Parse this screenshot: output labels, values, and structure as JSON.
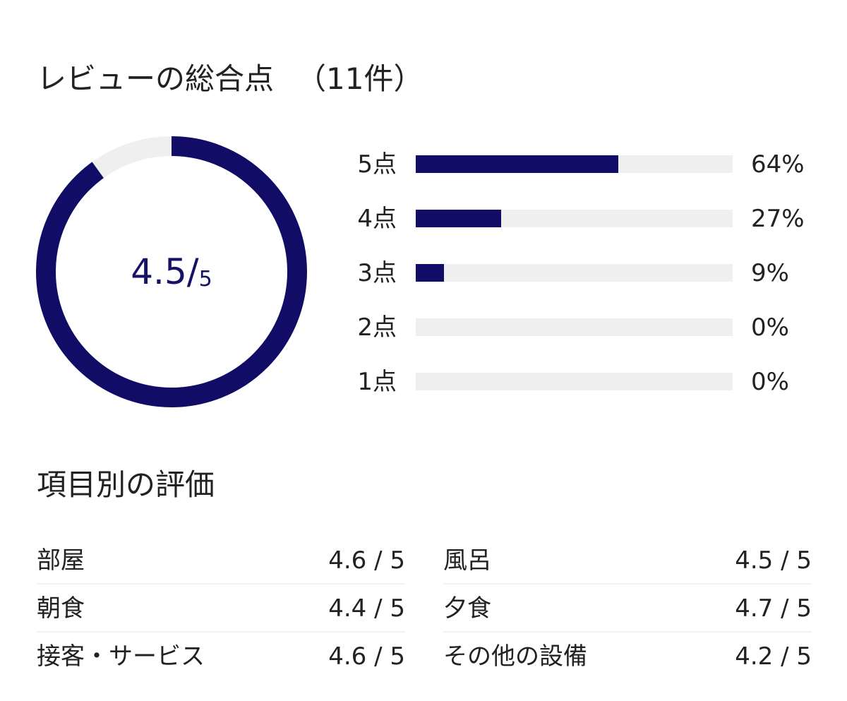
{
  "summary": {
    "title": "レビューの総合点",
    "count_label": "（11件）",
    "score": "4.5",
    "slash": "/",
    "max": "5",
    "score_fraction": 0.9,
    "ring_color": "#110d66",
    "track_color": "#efefef"
  },
  "distribution": [
    {
      "label": "5点",
      "percent_label": "64%",
      "percent": 64
    },
    {
      "label": "4点",
      "percent_label": "27%",
      "percent": 27
    },
    {
      "label": "3点",
      "percent_label": "9%",
      "percent": 9
    },
    {
      "label": "2点",
      "percent_label": "0%",
      "percent": 0
    },
    {
      "label": "1点",
      "percent_label": "0%",
      "percent": 0
    }
  ],
  "categories": {
    "title": "項目別の評価",
    "left": [
      {
        "name": "部屋",
        "score": "4.6 / 5"
      },
      {
        "name": "朝食",
        "score": "4.4 / 5"
      },
      {
        "name": "接客・サービス",
        "score": "4.6 / 5"
      }
    ],
    "right": [
      {
        "name": "風呂",
        "score": "4.5 / 5"
      },
      {
        "name": "夕食",
        "score": "4.7 / 5"
      },
      {
        "name": "その他の設備",
        "score": "4.2 / 5"
      }
    ]
  }
}
